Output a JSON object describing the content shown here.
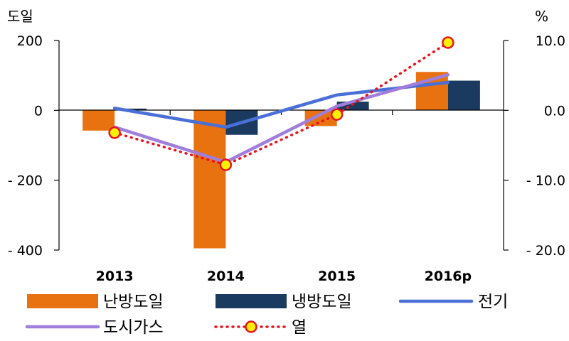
{
  "chart_data": {
    "type": "bar",
    "categories": [
      "2013",
      "2014",
      "2015",
      "2016p"
    ],
    "left_axis": {
      "unit": "도일",
      "ylim": [
        -400,
        200
      ],
      "ticks": [
        "200",
        "0",
        "- 200",
        "- 400"
      ]
    },
    "right_axis": {
      "unit": "%",
      "ylim": [
        -20.0,
        10.0
      ],
      "ticks": [
        "10.0",
        "0.0",
        "- 10.0",
        "- 20.0"
      ]
    },
    "bar_series": [
      {
        "name": "난방도일",
        "color": "#E8720F",
        "axis": "left",
        "values": [
          -58,
          -395,
          -45,
          110
        ]
      },
      {
        "name": "냉방도일",
        "color": "#1A3A5F",
        "axis": "left",
        "values": [
          5,
          -70,
          25,
          85
        ]
      }
    ],
    "line_series": [
      {
        "name": "전기",
        "color": "#4A6FD6",
        "axis": "right",
        "style": "solid",
        "values": [
          0.3,
          -2.4,
          2.2,
          4.0
        ]
      },
      {
        "name": "도시가스",
        "color": "#A07EDC",
        "axis": "right",
        "style": "solid",
        "values": [
          -2.4,
          -7.4,
          0.6,
          5.1
        ]
      },
      {
        "name": "열",
        "color": "#E8141E",
        "marker_fill": "#FFF200",
        "axis": "right",
        "style": "dotted",
        "values": [
          -3.2,
          -7.8,
          -0.6,
          9.7
        ]
      }
    ],
    "legend_position": "bottom",
    "grid": false
  }
}
